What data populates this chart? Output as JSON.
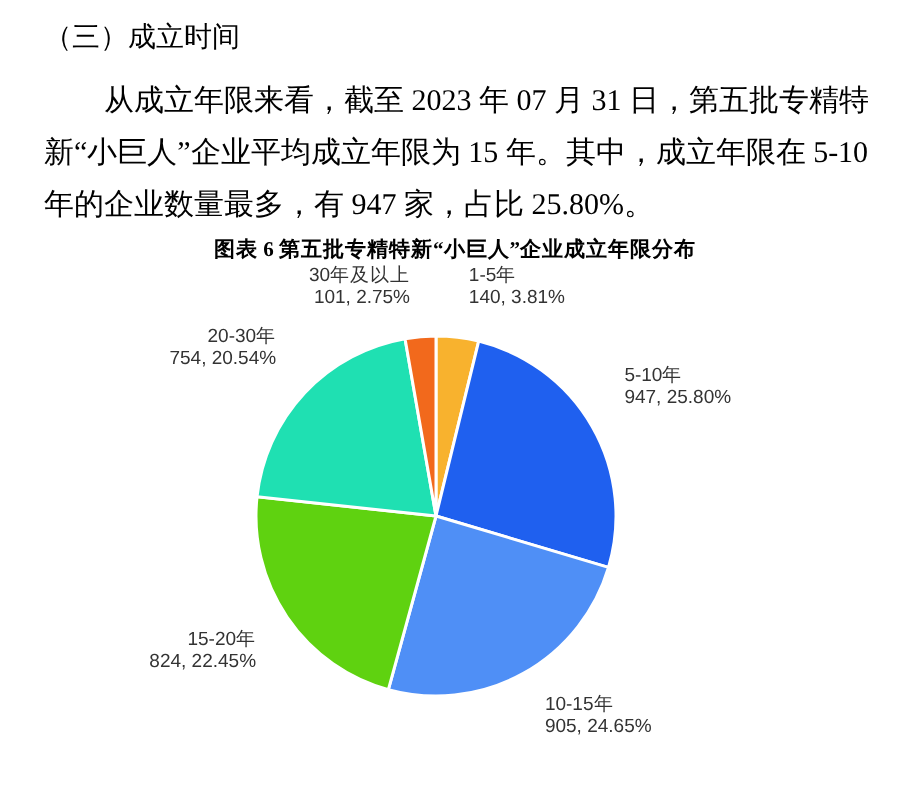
{
  "chart_data": {
    "type": "pie",
    "title": "图表 6  第五批专精特新“小巨人”企业成立年限分布",
    "annotations": [
      "（三）成立时间",
      "从成立年限来看，截至 2023 年 07 月 31 日，第五批专精特新“小巨人”企业平均成立年限为 15 年。其中，成立年限在 5-10 年的企业数量最多，有 947 家，占比 25.80%。"
    ],
    "categories": [
      "1-5年",
      "5-10年",
      "10-15年",
      "15-20年",
      "20-30年",
      "30年及以上"
    ],
    "values": [
      140,
      947,
      905,
      824,
      754,
      101
    ],
    "value_labels": [
      "140, 3.81%",
      "947, 25.80%",
      "905, 24.65%",
      "824, 22.45%",
      "754, 20.54%",
      "101, 2.75%"
    ],
    "colors": [
      "#f8b22e",
      "#1f60ef",
      "#4f8ff6",
      "#5fd210",
      "#1fe0b2",
      "#f2691c"
    ]
  }
}
